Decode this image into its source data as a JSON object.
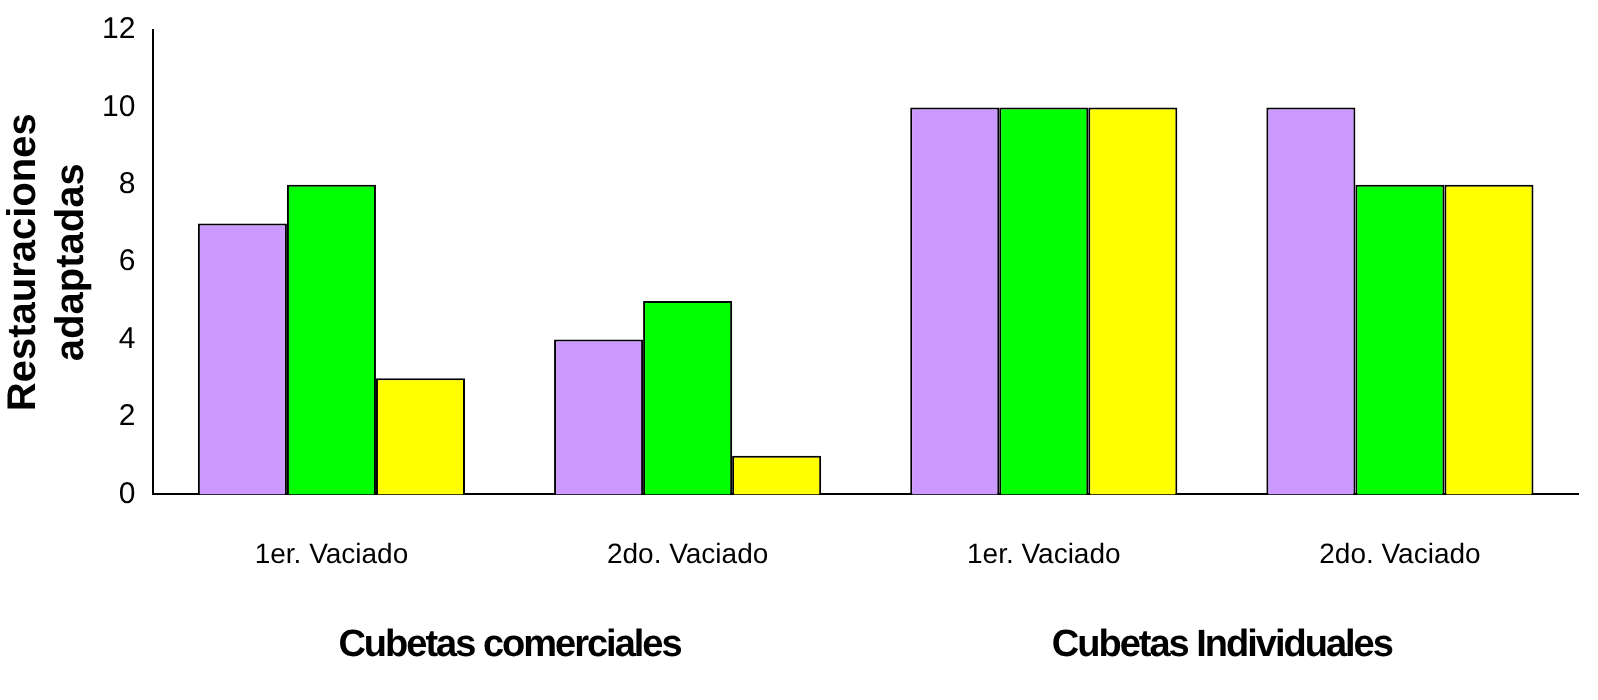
{
  "chart_data": {
    "type": "bar",
    "ylabel": "Restauraciones adaptadas",
    "categories": [
      "1er. Vaciado",
      "2do. Vaciado",
      "1er. Vaciado",
      "2do. Vaciado"
    ],
    "series": [
      {
        "color": "#cc99ff",
        "values": [
          7,
          4,
          10,
          10
        ]
      },
      {
        "color": "#00ff00",
        "values": [
          8,
          5,
          10,
          8
        ]
      },
      {
        "color": "#ffff00",
        "values": [
          3,
          1,
          10,
          8
        ]
      }
    ],
    "ylim": [
      0,
      12
    ],
    "yticks": [
      0,
      2,
      4,
      6,
      8,
      10,
      12
    ],
    "grid": false,
    "legend": false,
    "annotations": [
      "Cubetas comerciales",
      "Cubetas Individuales"
    ]
  }
}
